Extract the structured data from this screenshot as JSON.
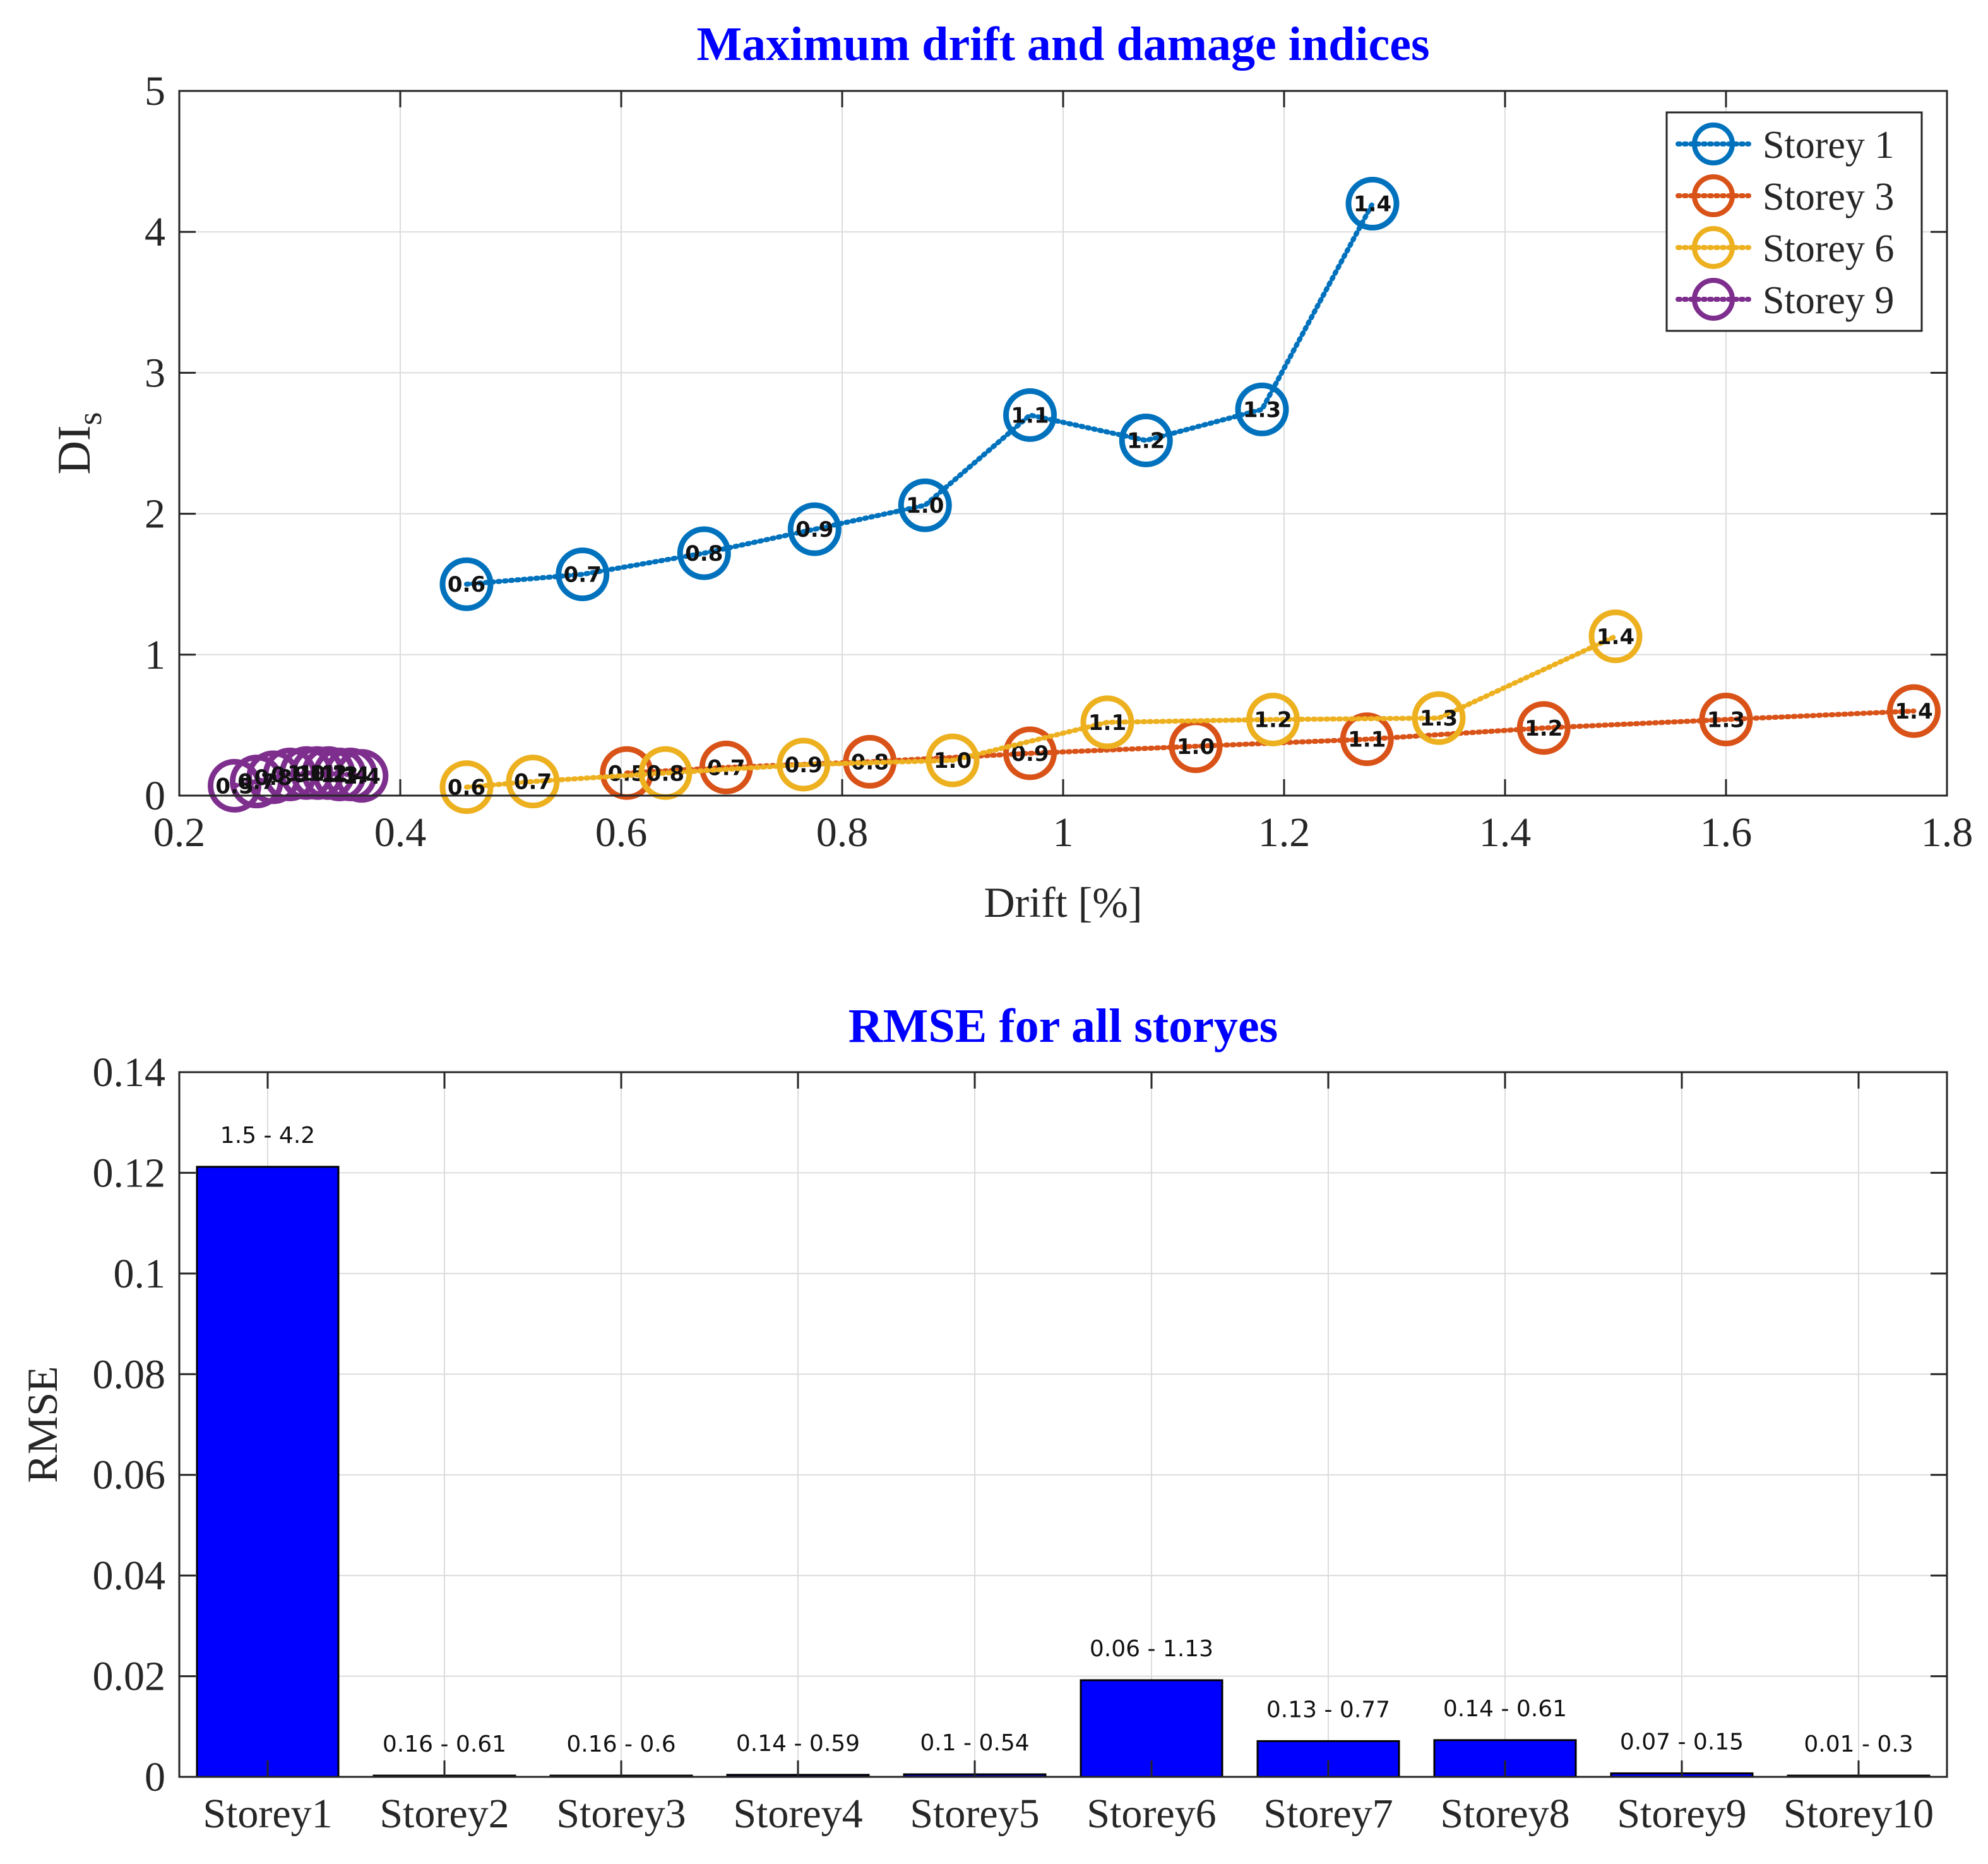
{
  "chart_data": [
    {
      "type": "line",
      "title": "Maximum drift and damage indices",
      "xlabel": "Drift [%]",
      "ylabel": "DI",
      "ylabel_sub": "s",
      "xlim": [
        0.2,
        1.8
      ],
      "ylim": [
        0,
        5
      ],
      "xticks": [
        "0.2",
        "0.4",
        "0.6",
        "0.8",
        "1",
        "1.2",
        "1.4",
        "1.6",
        "1.8"
      ],
      "yticks": [
        "0",
        "1",
        "2",
        "3",
        "4",
        "5"
      ],
      "grid": true,
      "legend_position": "top-right",
      "series": [
        {
          "name": "Storey 1",
          "color": "#0072BD",
          "x": [
            0.46,
            0.565,
            0.675,
            0.775,
            0.875,
            0.97,
            1.075,
            1.18,
            1.28
          ],
          "y": [
            1.5,
            1.57,
            1.72,
            1.89,
            2.06,
            2.7,
            2.52,
            2.74,
            4.2
          ],
          "labels": [
            "0.6",
            "0.7",
            "0.8",
            "0.9",
            "1.0",
            "1.1",
            "1.2",
            "1.3",
            "1.4"
          ]
        },
        {
          "name": "Storey 3",
          "color": "#D95319",
          "x": [
            0.605,
            0.695,
            0.825,
            0.97,
            1.12,
            1.275,
            1.435,
            1.6,
            1.77
          ],
          "y": [
            0.16,
            0.2,
            0.24,
            0.3,
            0.35,
            0.4,
            0.48,
            0.54,
            0.6
          ],
          "labels": [
            "0.5",
            "0.7",
            "0.8",
            "0.9",
            "1.0",
            "1.1",
            "1.2",
            "1.3",
            "1.4"
          ]
        },
        {
          "name": "Storey 6",
          "color": "#EDB120",
          "x": [
            0.46,
            0.52,
            0.64,
            0.765,
            0.9,
            1.04,
            1.19,
            1.34,
            1.5
          ],
          "y": [
            0.06,
            0.1,
            0.16,
            0.22,
            0.25,
            0.52,
            0.54,
            0.55,
            1.13
          ],
          "labels": [
            "0.6",
            "0.7",
            "0.8",
            "0.9",
            "1.0",
            "1.1",
            "1.2",
            "1.3",
            "1.4"
          ]
        },
        {
          "name": "Storey 9",
          "color": "#7E2F8E",
          "x": [
            0.25,
            0.27,
            0.285,
            0.3,
            0.315,
            0.325,
            0.335,
            0.345,
            0.355,
            0.365
          ],
          "y": [
            0.07,
            0.1,
            0.13,
            0.15,
            0.16,
            0.16,
            0.16,
            0.15,
            0.15,
            0.14
          ],
          "labels": [
            "0.5",
            "0.7",
            "0.8",
            "0.9",
            "1.0",
            "1.1",
            "1.2",
            "1.3",
            "1.4",
            "1.4"
          ]
        }
      ]
    },
    {
      "type": "bar",
      "title": "RMSE for all storyes",
      "xlabel": "",
      "ylabel": "RMSE",
      "ylim": [
        0,
        0.14
      ],
      "yticks": [
        "0",
        "0.02",
        "0.04",
        "0.06",
        "0.08",
        "0.1",
        "0.12",
        "0.14"
      ],
      "grid": true,
      "bar_color": "#0000FF",
      "categories": [
        "Storey1",
        "Storey2",
        "Storey3",
        "Storey4",
        "Storey5",
        "Storey6",
        "Storey7",
        "Storey8",
        "Storey9",
        "Storey10"
      ],
      "values": [
        0.1212,
        0.0002,
        0.0002,
        0.0004,
        0.0005,
        0.0192,
        0.0071,
        0.0073,
        0.0007,
        0.0002
      ],
      "data_labels": [
        "1.5 - 4.2",
        "0.16 - 0.61",
        "0.16 - 0.6",
        "0.14 - 0.59",
        "0.1 - 0.54",
        "0.06 - 1.13",
        "0.13 - 0.77",
        "0.14 - 0.61",
        "0.07 - 0.15",
        "0.01 - 0.3"
      ]
    }
  ]
}
